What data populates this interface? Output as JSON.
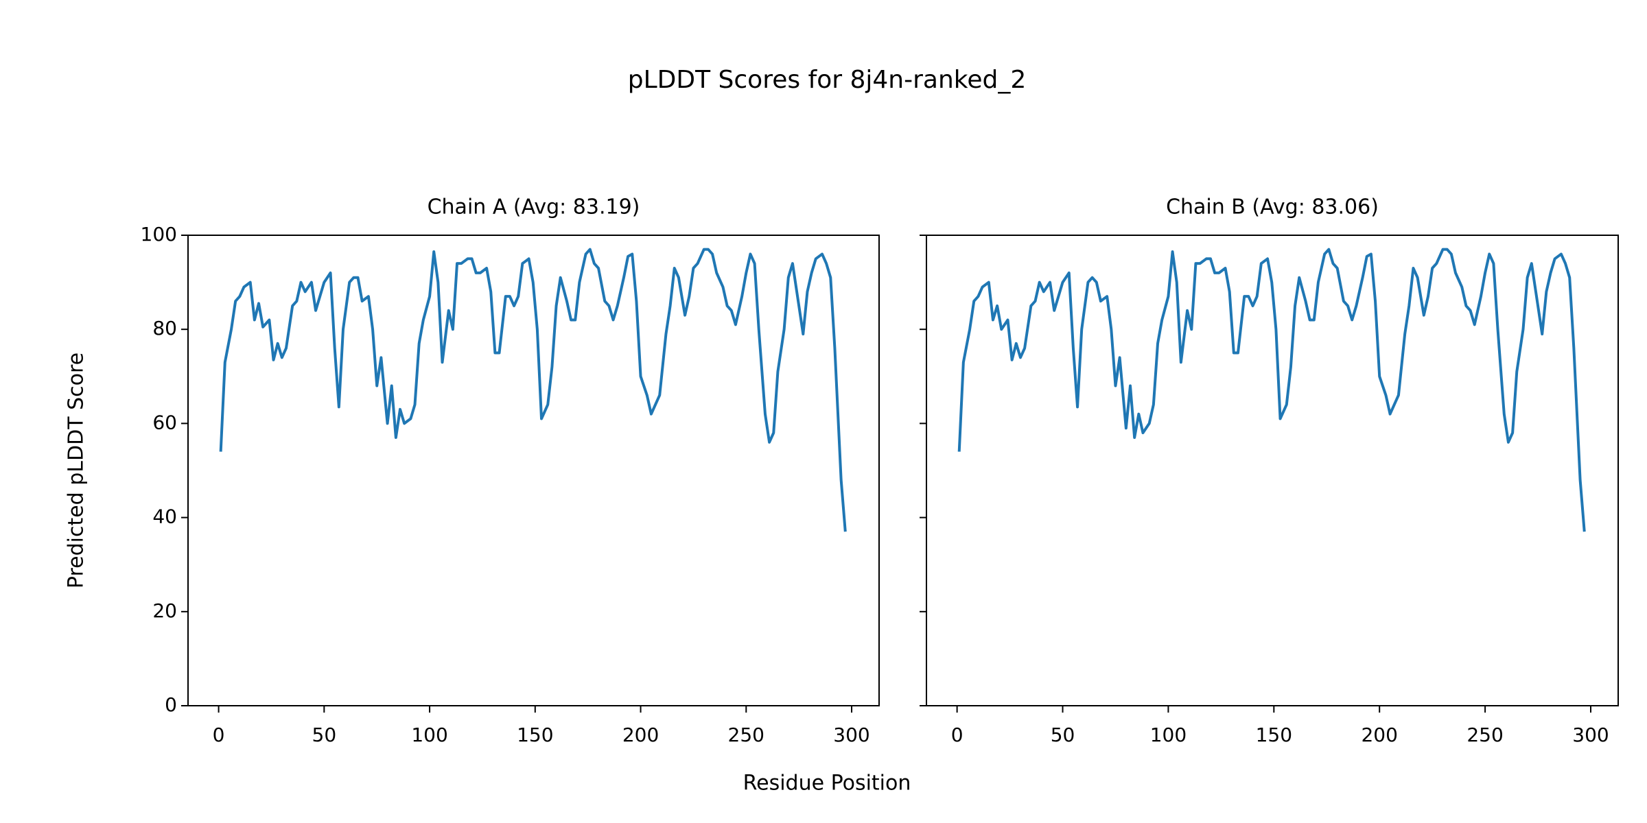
{
  "title": "pLDDT Scores for 8j4n-ranked_2",
  "xlabel": "Residue Position",
  "ylabel": "Predicted pLDDT Score",
  "chart_data": [
    {
      "type": "line",
      "title": "Chain A (Avg: 83.19)",
      "color": "#1f77b4",
      "x": [
        1,
        3,
        6,
        8,
        10,
        12,
        15,
        17,
        19,
        21,
        24,
        26,
        28,
        30,
        32,
        35,
        37,
        39,
        41,
        44,
        46,
        48,
        50,
        53,
        55,
        57,
        59,
        62,
        64,
        66,
        68,
        71,
        73,
        75,
        77,
        80,
        82,
        84,
        86,
        88,
        91,
        93,
        95,
        97,
        100,
        102,
        104,
        106,
        109,
        111,
        113,
        115,
        118,
        120,
        122,
        124,
        127,
        129,
        131,
        133,
        136,
        138,
        140,
        142,
        144,
        147,
        149,
        151,
        153,
        156,
        158,
        160,
        162,
        165,
        167,
        169,
        171,
        174,
        176,
        178,
        180,
        183,
        185,
        187,
        189,
        192,
        194,
        196,
        198,
        200,
        203,
        205,
        207,
        209,
        212,
        214,
        216,
        218,
        221,
        223,
        225,
        227,
        230,
        232,
        234,
        236,
        239,
        241,
        243,
        245,
        248,
        250,
        252,
        254,
        256,
        259,
        261,
        263,
        265,
        268,
        270,
        272,
        274,
        277,
        279,
        281,
        283,
        286,
        288,
        290,
        292,
        295,
        297
      ],
      "values": [
        54,
        73,
        80,
        86,
        87,
        89,
        90,
        82,
        85.5,
        80.5,
        82,
        73.5,
        77,
        74,
        76,
        85,
        86,
        90,
        88,
        90,
        84,
        87,
        90,
        92,
        76,
        63.5,
        80,
        90,
        91,
        91,
        86,
        87,
        80,
        68,
        74,
        60,
        68,
        57,
        63,
        60,
        61,
        64,
        77,
        82,
        87,
        96.5,
        90,
        73,
        84,
        80,
        94,
        94,
        95,
        95,
        92,
        92,
        93,
        88,
        75,
        75,
        87,
        87,
        85,
        87,
        94,
        95,
        90,
        80,
        61,
        64,
        72,
        85,
        91,
        86,
        82,
        82,
        90,
        96,
        97,
        94,
        93,
        86,
        85,
        82,
        85,
        91,
        95.5,
        96,
        86,
        70,
        66,
        62,
        64,
        66,
        79,
        85,
        93,
        91,
        83,
        87,
        93,
        94,
        97,
        97,
        96,
        92,
        89,
        85,
        84,
        81,
        87,
        92,
        96,
        94,
        80,
        62,
        56,
        58,
        71,
        80,
        91,
        94,
        88,
        79,
        88,
        92,
        95,
        96,
        94,
        91,
        76,
        48,
        37
      ],
      "xlim": [
        -14.5,
        313
      ],
      "xticks": [
        0,
        50,
        100,
        150,
        200,
        250,
        300
      ],
      "ylim": [
        0,
        100
      ],
      "yticks": [
        0,
        20,
        40,
        60,
        80,
        100
      ]
    },
    {
      "type": "line",
      "title": "Chain B (Avg: 83.06)",
      "color": "#1f77b4",
      "sharey": true,
      "x": [
        1,
        3,
        6,
        8,
        10,
        12,
        15,
        17,
        19,
        21,
        24,
        26,
        28,
        30,
        32,
        35,
        37,
        39,
        41,
        44,
        46,
        48,
        50,
        53,
        55,
        57,
        59,
        62,
        64,
        66,
        68,
        71,
        73,
        75,
        77,
        80,
        82,
        84,
        86,
        88,
        91,
        93,
        95,
        97,
        100,
        102,
        104,
        106,
        109,
        111,
        113,
        115,
        118,
        120,
        122,
        124,
        127,
        129,
        131,
        133,
        136,
        138,
        140,
        142,
        144,
        147,
        149,
        151,
        153,
        156,
        158,
        160,
        162,
        165,
        167,
        169,
        171,
        174,
        176,
        178,
        180,
        183,
        185,
        187,
        189,
        192,
        194,
        196,
        198,
        200,
        203,
        205,
        207,
        209,
        212,
        214,
        216,
        218,
        221,
        223,
        225,
        227,
        230,
        232,
        234,
        236,
        239,
        241,
        243,
        245,
        248,
        250,
        252,
        254,
        256,
        259,
        261,
        263,
        265,
        268,
        270,
        272,
        274,
        277,
        279,
        281,
        283,
        286,
        288,
        290,
        292,
        295,
        297
      ],
      "values": [
        54,
        73,
        80,
        86,
        87,
        89,
        90,
        82,
        85,
        80,
        82,
        73.5,
        77,
        74,
        76,
        85,
        86,
        90,
        88,
        90,
        84,
        87,
        90,
        92,
        76,
        63.5,
        80,
        90,
        91,
        90,
        86,
        87,
        80,
        68,
        74,
        59,
        68,
        57,
        62,
        58,
        60,
        64,
        77,
        82,
        87,
        96.5,
        90,
        73,
        84,
        80,
        94,
        94,
        95,
        95,
        92,
        92,
        93,
        88,
        75,
        75,
        87,
        87,
        85,
        87,
        94,
        95,
        90,
        80,
        61,
        64,
        72,
        85,
        91,
        86,
        82,
        82,
        90,
        96,
        97,
        94,
        93,
        86,
        85,
        82,
        85,
        91,
        95.5,
        96,
        86,
        70,
        66,
        62,
        64,
        66,
        79,
        85,
        93,
        91,
        83,
        87,
        93,
        94,
        97,
        97,
        96,
        92,
        89,
        85,
        84,
        81,
        87,
        92,
        96,
        94,
        80,
        62,
        56,
        58,
        71,
        80,
        91,
        94,
        88,
        79,
        88,
        92,
        95,
        96,
        94,
        91,
        76,
        48,
        37
      ],
      "xlim": [
        -14.5,
        313
      ],
      "xticks": [
        0,
        50,
        100,
        150,
        200,
        250,
        300
      ],
      "ylim": [
        0,
        100
      ],
      "yticks": [
        0,
        20,
        40,
        60,
        80,
        100
      ]
    }
  ]
}
